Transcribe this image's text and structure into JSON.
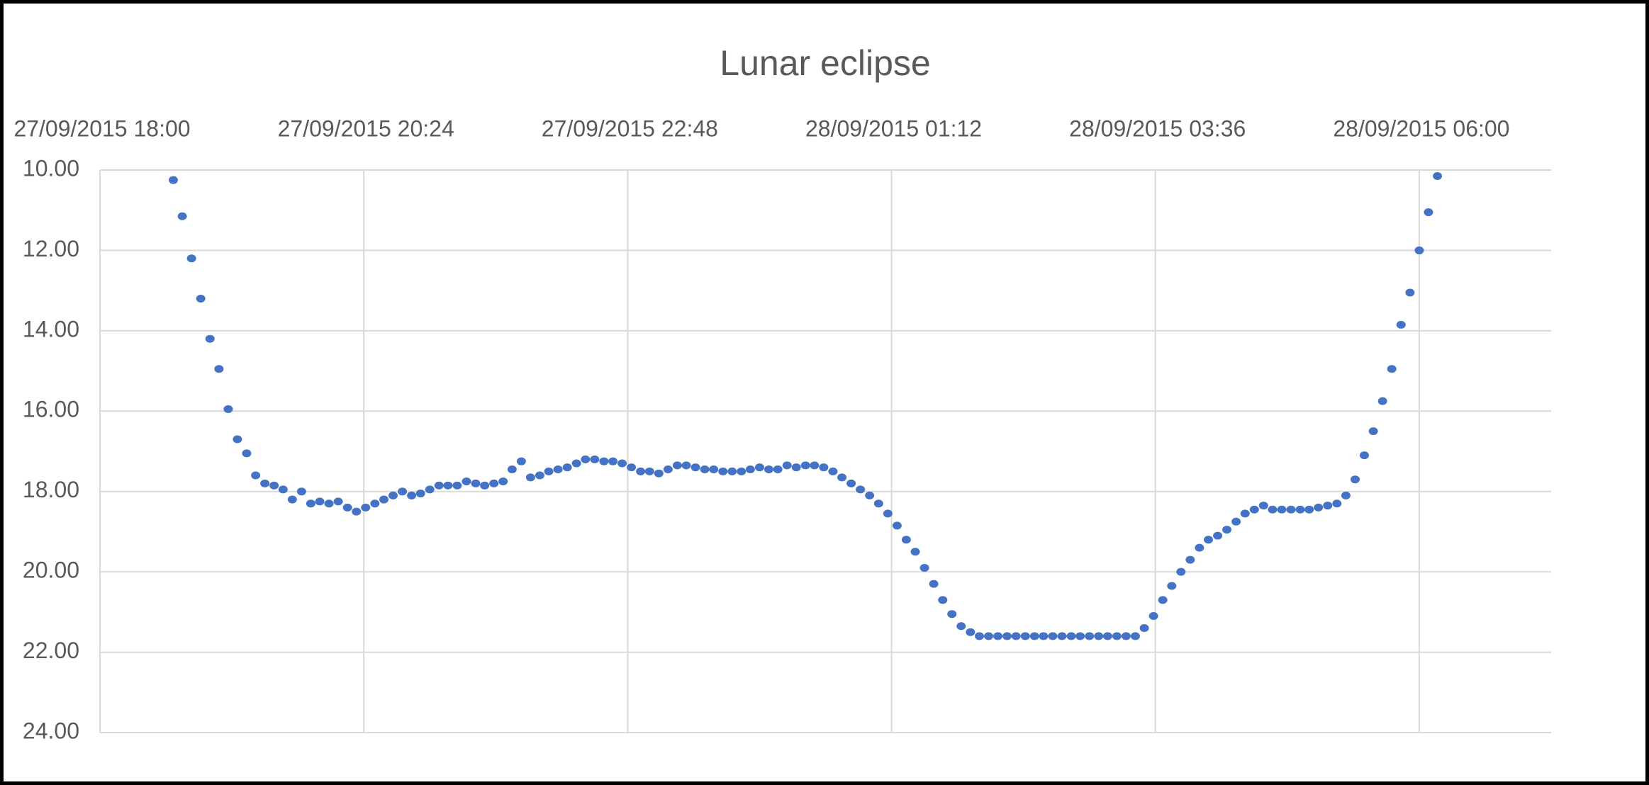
{
  "chart_data": {
    "type": "scatter",
    "title": "Lunar eclipse",
    "color": "#4472c4",
    "x": [
      42274.7778,
      42274.7812,
      42274.7847,
      42274.7882,
      42274.7917,
      42274.7951,
      42274.7986,
      42274.8021,
      42274.8056,
      42274.809,
      42274.8125,
      42274.816,
      42274.8194,
      42274.8229,
      42274.8264,
      42274.8299,
      42274.8333,
      42274.8368,
      42274.8403,
      42274.8438,
      42274.8472,
      42274.8507,
      42274.8542,
      42274.8576,
      42274.8611,
      42274.8646,
      42274.8681,
      42274.8715,
      42274.875,
      42274.8785,
      42274.8819,
      42274.8854,
      42274.8889,
      42274.8924,
      42274.8958,
      42274.8993,
      42274.9028,
      42274.9062,
      42274.9097,
      42274.9132,
      42274.9167,
      42274.9201,
      42274.9236,
      42274.9271,
      42274.9306,
      42274.934,
      42274.9375,
      42274.941,
      42274.9444,
      42274.9479,
      42274.9514,
      42274.9549,
      42274.9583,
      42274.9618,
      42274.9653,
      42274.9688,
      42274.9722,
      42274.9757,
      42274.9792,
      42274.9826,
      42274.9861,
      42274.9896,
      42274.9931,
      42274.9965,
      42275.0,
      42275.0035,
      42275.0069,
      42275.0104,
      42275.0139,
      42275.0174,
      42275.0208,
      42275.0243,
      42275.0278,
      42275.0312,
      42275.0347,
      42275.0382,
      42275.0417,
      42275.0451,
      42275.0486,
      42275.0521,
      42275.0556,
      42275.059,
      42275.0625,
      42275.066,
      42275.0694,
      42275.0729,
      42275.0764,
      42275.0799,
      42275.0833,
      42275.0868,
      42275.0903,
      42275.0938,
      42275.0972,
      42275.1007,
      42275.1042,
      42275.1076,
      42275.1111,
      42275.1146,
      42275.1181,
      42275.1215,
      42275.125,
      42275.1285,
      42275.1319,
      42275.1354,
      42275.1389,
      42275.1424,
      42275.1458,
      42275.1493,
      42275.1528,
      42275.1562,
      42275.1597,
      42275.1632,
      42275.1667,
      42275.1701,
      42275.1736,
      42275.1771,
      42275.1806,
      42275.184,
      42275.1875,
      42275.191,
      42275.1944,
      42275.1979,
      42275.2014,
      42275.2049,
      42275.2083,
      42275.2118,
      42275.2153,
      42275.2188,
      42275.2222,
      42275.2257,
      42275.2292,
      42275.2326,
      42275.2361,
      42275.2396,
      42275.2431,
      42275.2465,
      42275.25,
      42275.2535,
      42275.2569
    ],
    "values": [
      10.25,
      11.15,
      12.2,
      13.2,
      14.2,
      14.95,
      15.95,
      16.7,
      17.05,
      17.6,
      17.8,
      17.85,
      17.95,
      18.2,
      18.0,
      18.3,
      18.25,
      18.3,
      18.25,
      18.4,
      18.5,
      18.4,
      18.3,
      18.2,
      18.1,
      18.0,
      18.1,
      18.05,
      17.95,
      17.85,
      17.85,
      17.85,
      17.75,
      17.8,
      17.85,
      17.8,
      17.75,
      17.45,
      17.25,
      17.65,
      17.6,
      17.5,
      17.45,
      17.4,
      17.3,
      17.2,
      17.2,
      17.25,
      17.25,
      17.3,
      17.4,
      17.5,
      17.5,
      17.55,
      17.45,
      17.35,
      17.35,
      17.4,
      17.45,
      17.45,
      17.5,
      17.5,
      17.5,
      17.45,
      17.4,
      17.45,
      17.45,
      17.35,
      17.4,
      17.35,
      17.35,
      17.4,
      17.5,
      17.65,
      17.8,
      17.95,
      18.1,
      18.3,
      18.55,
      18.85,
      19.2,
      19.5,
      19.9,
      20.3,
      20.7,
      21.05,
      21.35,
      21.5,
      21.6,
      21.6,
      21.6,
      21.6,
      21.6,
      21.6,
      21.6,
      21.6,
      21.6,
      21.6,
      21.6,
      21.6,
      21.6,
      21.6,
      21.6,
      21.6,
      21.6,
      21.6,
      21.4,
      21.1,
      20.7,
      20.35,
      20.0,
      19.7,
      19.4,
      19.2,
      19.1,
      18.95,
      18.75,
      18.55,
      18.45,
      18.35,
      18.45,
      18.45,
      18.45,
      18.45,
      18.45,
      18.4,
      18.35,
      18.3,
      18.1,
      17.7,
      17.1,
      16.5,
      15.75,
      14.95,
      13.85,
      13.05,
      12.0,
      11.05,
      10.15
    ],
    "xlim": [
      42274.75,
      42275.3
    ],
    "xticks": [
      {
        "value": 42274.75,
        "label": "27/09/2015 18:00"
      },
      {
        "value": 42274.85,
        "label": "27/09/2015 20:24"
      },
      {
        "value": 42274.95,
        "label": "27/09/2015 22:48"
      },
      {
        "value": 42275.05,
        "label": "28/09/2015 01:12"
      },
      {
        "value": 42275.15,
        "label": "28/09/2015 03:36"
      },
      {
        "value": 42275.25,
        "label": "28/09/2015 06:00"
      }
    ],
    "ylim": [
      10,
      24
    ],
    "y_reversed": true,
    "x_axis_position": "top",
    "yticks": [
      {
        "value": 10,
        "label": "10.00"
      },
      {
        "value": 12,
        "label": "12.00"
      },
      {
        "value": 14,
        "label": "14.00"
      },
      {
        "value": 16,
        "label": "16.00"
      },
      {
        "value": 18,
        "label": "18.00"
      },
      {
        "value": 20,
        "label": "20.00"
      },
      {
        "value": 22,
        "label": "22.00"
      },
      {
        "value": 24,
        "label": "24.00"
      }
    ],
    "grid": true
  }
}
